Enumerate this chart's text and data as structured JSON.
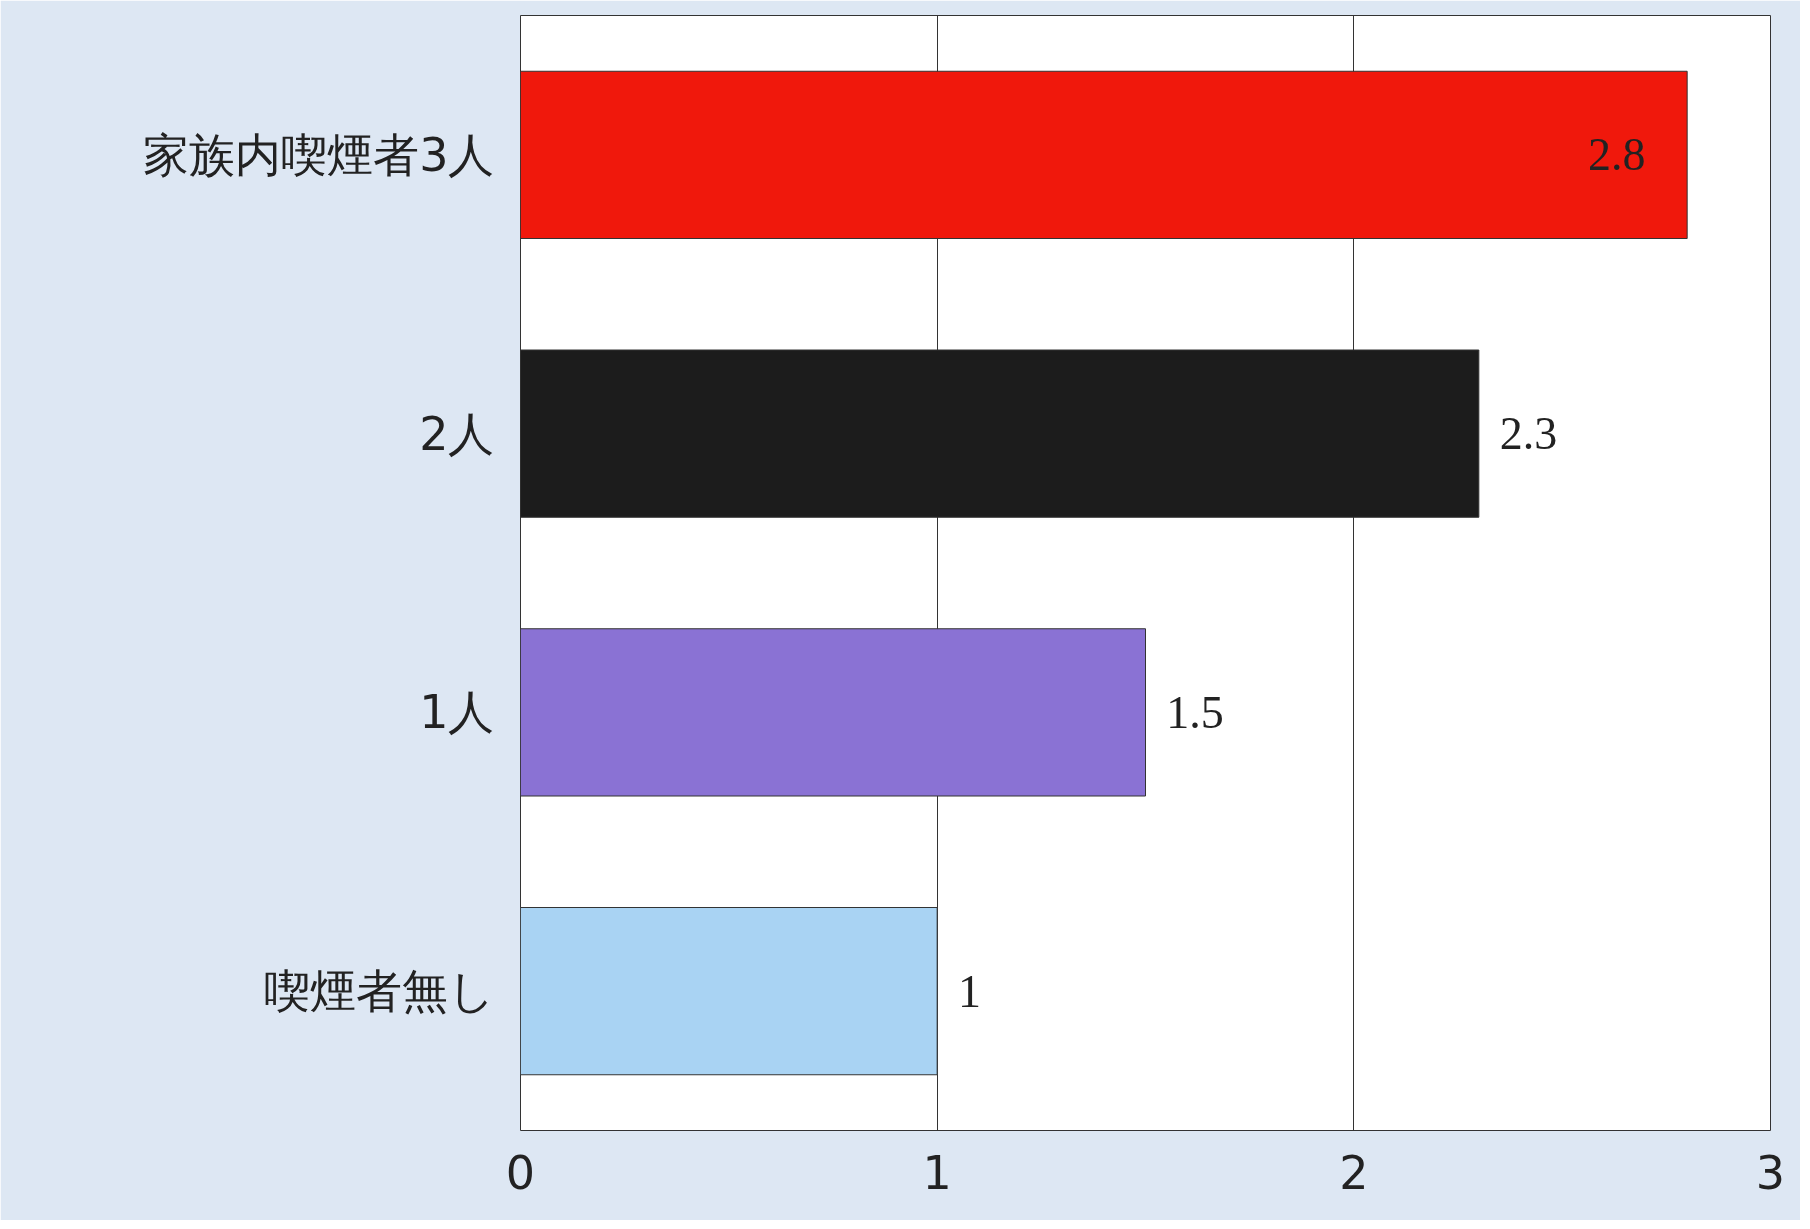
{
  "chart_data": {
    "type": "bar",
    "orientation": "horizontal",
    "categories": [
      "家族内喫煙者3人",
      "2人",
      "1人",
      "喫煙者無し"
    ],
    "values": [
      2.8,
      2.3,
      1.5,
      1
    ],
    "colors": [
      "#f0180c",
      "#1c1c1c",
      "#8a72d4",
      "#a9d3f3"
    ],
    "xlim": [
      0,
      3
    ],
    "xticks": [
      0,
      1,
      2,
      3
    ],
    "grid": "x",
    "data_labels": true
  }
}
